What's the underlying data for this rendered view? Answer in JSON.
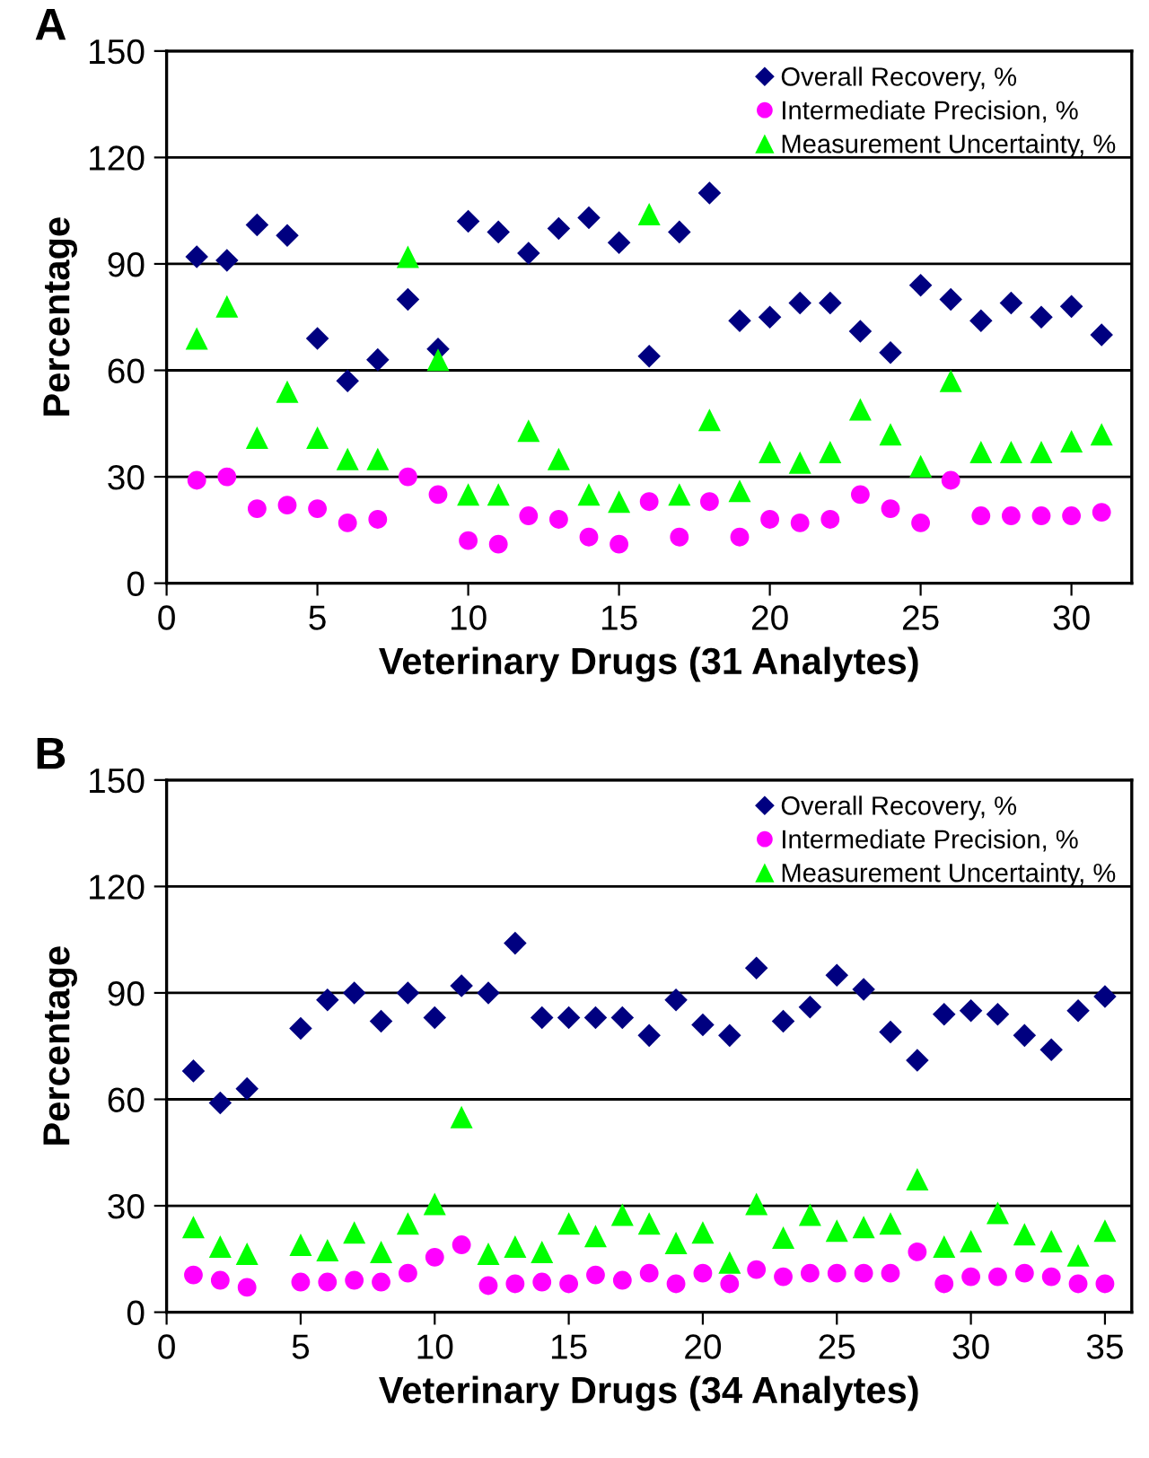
{
  "chart_data": [
    {
      "type": "scatter",
      "annotations": [
        "A"
      ],
      "xlabel": "Veterinary Drugs (31 Analytes)",
      "ylabel": "Percentage",
      "x": [
        1,
        2,
        3,
        4,
        5,
        6,
        7,
        8,
        9,
        10,
        11,
        12,
        13,
        14,
        15,
        16,
        17,
        18,
        19,
        20,
        21,
        22,
        23,
        24,
        25,
        26,
        27,
        28,
        29,
        30,
        31
      ],
      "series": [
        {
          "name": "Overall Recovery, %",
          "color": "#000080",
          "marker": "diamond",
          "values": [
            92,
            91,
            101,
            98,
            69,
            57,
            63,
            80,
            66,
            102,
            99,
            93,
            100,
            103,
            96,
            64,
            99,
            110,
            74,
            75,
            79,
            79,
            71,
            65,
            84,
            80,
            74,
            79,
            75,
            78,
            70
          ]
        },
        {
          "name": "Intermediate Precision, %",
          "color": "#ff00ff",
          "marker": "circle",
          "values": [
            29,
            30,
            21,
            22,
            21,
            17,
            18,
            30,
            25,
            12,
            11,
            19,
            18,
            13,
            11,
            23,
            13,
            23,
            13,
            18,
            17,
            18,
            25,
            21,
            17,
            29,
            19,
            19,
            19,
            19,
            20
          ]
        },
        {
          "name": "Measurement Uncertainty, %",
          "color": "#00ff00",
          "marker": "triangle",
          "values": [
            69,
            78,
            41,
            54,
            41,
            35,
            35,
            92,
            63,
            25,
            25,
            43,
            35,
            25,
            23,
            104,
            25,
            46,
            26,
            37,
            34,
            37,
            49,
            42,
            33,
            57,
            37,
            37,
            37,
            40,
            42
          ]
        }
      ],
      "xlim": [
        0,
        32
      ],
      "xticks": [
        0,
        5,
        10,
        15,
        20,
        25,
        30
      ],
      "ylim": [
        0,
        150
      ],
      "yticks": [
        0,
        30,
        60,
        90,
        120,
        150
      ],
      "grid": "y",
      "legend": "top right"
    },
    {
      "type": "scatter",
      "annotations": [
        "B"
      ],
      "xlabel": "Veterinary Drugs (34 Analytes)",
      "ylabel": "Percentage",
      "x": [
        1,
        2,
        3,
        5,
        6,
        7,
        8,
        9,
        10,
        11,
        12,
        13,
        14,
        15,
        16,
        17,
        18,
        19,
        20,
        21,
        22,
        23,
        24,
        25,
        26,
        27,
        28,
        29,
        30,
        31,
        32,
        33,
        34,
        35
      ],
      "series": [
        {
          "name": "Overall Recovery, %",
          "color": "#000080",
          "marker": "diamond",
          "values": [
            68,
            59,
            63,
            80,
            88,
            90,
            82,
            90,
            83,
            92,
            90,
            104,
            83,
            83,
            83,
            83,
            78,
            88,
            81,
            78,
            97,
            82,
            86,
            95,
            91,
            79,
            71,
            84,
            85,
            84,
            78,
            74,
            85,
            89
          ]
        },
        {
          "name": "Intermediate Precision, %",
          "color": "#ff00ff",
          "marker": "circle",
          "values": [
            10.5,
            9,
            7,
            8.5,
            8.5,
            9,
            8.5,
            11,
            15.5,
            19,
            7.5,
            8,
            8.5,
            8,
            10.5,
            9,
            11,
            8,
            11,
            8,
            12,
            10,
            11,
            11,
            11,
            11,
            17,
            8,
            10,
            10,
            11,
            10,
            8,
            8
          ]
        },
        {
          "name": "Measurement Uncertainty, %",
          "color": "#00ff00",
          "marker": "triangle",
          "values": [
            24,
            18.5,
            16.5,
            19,
            17.5,
            22.5,
            17,
            25,
            30.5,
            55,
            16.5,
            18.5,
            17,
            25,
            21.5,
            27.5,
            25,
            19.5,
            22.5,
            14,
            30.5,
            21,
            27.5,
            23,
            24,
            25,
            37.5,
            18.5,
            20,
            28,
            22,
            20,
            16,
            23
          ]
        }
      ],
      "xlim": [
        0,
        36
      ],
      "xticks": [
        0,
        5,
        10,
        15,
        20,
        25,
        30,
        35
      ],
      "ylim": [
        0,
        150
      ],
      "yticks": [
        0,
        30,
        60,
        90,
        120,
        150
      ],
      "grid": "y",
      "legend": "top right"
    }
  ]
}
